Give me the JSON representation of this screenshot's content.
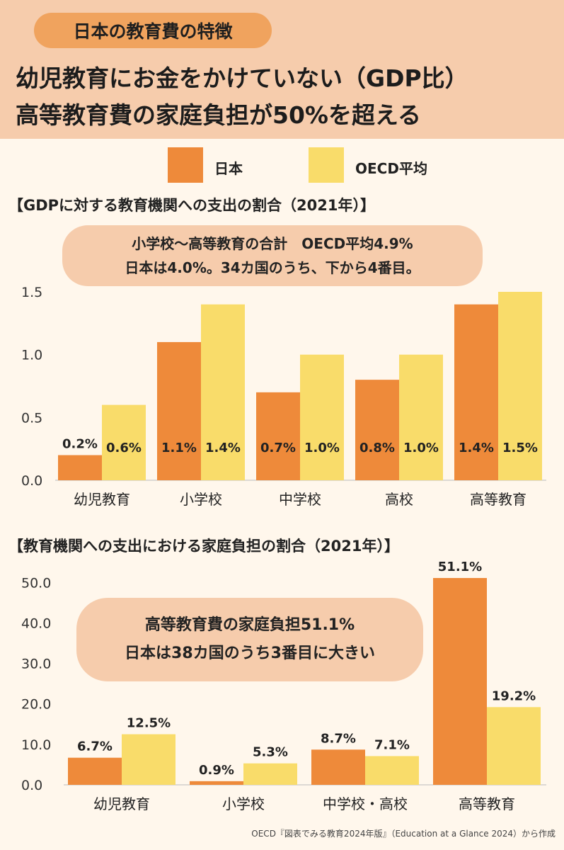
{
  "header": {
    "tag": "日本の教育費の特徴",
    "headline1": "幼児教育にお金をかけていない（GDP比）",
    "headline2": "高等教育費の家庭負担が50%を超える"
  },
  "legend": {
    "japan": "日本",
    "oecd": "OECD平均"
  },
  "colors": {
    "japan": "#ee8a3a",
    "oecd": "#f9dc6a",
    "band": "#f6ccac",
    "tag": "#f0a35e"
  },
  "callout1": {
    "line1": "小学校～高等教育の合計　OECD平均4.9%",
    "line2": "日本は4.0%。34カ国のうち、下から4番目。"
  },
  "callout2": {
    "line1": "高等教育費の家庭負担51.1%",
    "line2": "日本は38カ国のうち3番目に大きい"
  },
  "source": "OECD『図表でみる教育2024年版』（Education at a Glance 2024）から作成",
  "chart_data": [
    {
      "type": "bar",
      "title": "【GDPに対する教育機関への支出の割合（2021年）】",
      "categories": [
        "幼児教育",
        "小学校",
        "中学校",
        "高校",
        "高等教育"
      ],
      "series": [
        {
          "name": "日本",
          "values": [
            0.2,
            1.1,
            0.7,
            0.8,
            1.4
          ],
          "labels": [
            "0.2%",
            "1.1%",
            "0.7%",
            "0.8%",
            "1.4%"
          ]
        },
        {
          "name": "OECD平均",
          "values": [
            0.6,
            1.4,
            1.0,
            1.0,
            1.5
          ],
          "labels": [
            "0.6%",
            "1.4%",
            "1.0%",
            "1.0%",
            "1.5%"
          ]
        }
      ],
      "yticks": [
        "0.0",
        "0.5",
        "1.0",
        "1.5"
      ],
      "ylim": [
        0,
        1.5
      ],
      "grid": false,
      "legend": "top-center"
    },
    {
      "type": "bar",
      "title": "【教育機関への支出における家庭負担の割合（2021年）】",
      "categories": [
        "幼児教育",
        "小学校",
        "中学校・高校",
        "高等教育"
      ],
      "series": [
        {
          "name": "日本",
          "values": [
            6.7,
            0.9,
            8.7,
            51.1
          ],
          "labels": [
            "6.7%",
            "0.9%",
            "8.7%",
            "51.1%"
          ]
        },
        {
          "name": "OECD平均",
          "values": [
            12.5,
            5.3,
            7.1,
            19.2
          ],
          "labels": [
            "12.5%",
            "5.3%",
            "7.1%",
            "19.2%"
          ]
        }
      ],
      "yticks": [
        "0.0",
        "10.0",
        "20.0",
        "30.0",
        "40.0",
        "50.0"
      ],
      "ylim": [
        0,
        51.1
      ],
      "grid": false,
      "legend": "top-center"
    }
  ]
}
